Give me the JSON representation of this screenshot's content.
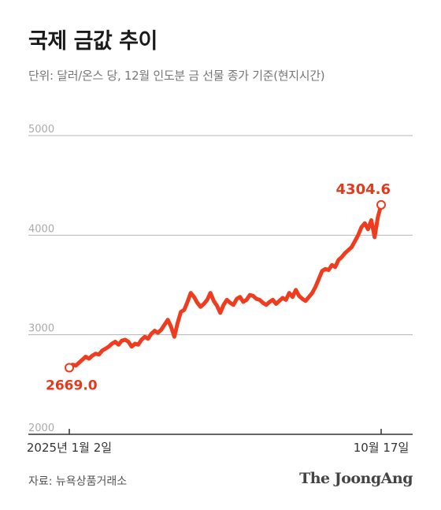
{
  "title": "국제 금값 추이",
  "subtitle": "단위: 달러/온스 당, 12월 인도분 금 선물 종가 기준(현지시간)",
  "source": "자료: 뉴욕상품거래소",
  "brand": "The JoongAng",
  "colors": {
    "line": "#f03c1e",
    "grid": "#b5b5b5",
    "axis": "#333333",
    "tick_label": "#aaaaaa",
    "label": "#e8381c"
  },
  "chart_data": {
    "type": "line",
    "title": "국제 금값 추이",
    "xlabel": "",
    "ylabel": "",
    "ylim": [
      2000,
      5000
    ],
    "yticks": [
      2000,
      3000,
      4000,
      5000
    ],
    "x_tick_labels": [
      "2025년 1월 2일",
      "10월 17일"
    ],
    "x_range": [
      "2025-01-02",
      "2025-10-17"
    ],
    "grid": true,
    "series": [
      {
        "values": [
          2669.0,
          2700,
          2690,
          2720,
          2750,
          2780,
          2760,
          2790,
          2810,
          2800,
          2840,
          2860,
          2880,
          2910,
          2930,
          2900,
          2940,
          2950,
          2930,
          2880,
          2910,
          2900,
          2950,
          2980,
          2960,
          3010,
          3040,
          3020,
          3050,
          3100,
          3150,
          3080,
          2980,
          3120,
          3230,
          3250,
          3330,
          3420,
          3380,
          3320,
          3280,
          3310,
          3350,
          3420,
          3340,
          3290,
          3220,
          3300,
          3350,
          3320,
          3300,
          3360,
          3380,
          3330,
          3350,
          3400,
          3390,
          3360,
          3350,
          3320,
          3300,
          3330,
          3350,
          3310,
          3340,
          3370,
          3350,
          3420,
          3380,
          3450,
          3390,
          3360,
          3340,
          3380,
          3420,
          3480,
          3560,
          3640,
          3660,
          3650,
          3700,
          3680,
          3750,
          3780,
          3820,
          3850,
          3880,
          3940,
          4000,
          4080,
          4120,
          4060,
          4150,
          3980,
          4180,
          4304.6
        ]
      }
    ],
    "annotations": [
      {
        "label": "2669.0",
        "x": "2025-01-02",
        "y": 2669.0
      },
      {
        "label": "4304.6",
        "x": "2025-10-17",
        "y": 4304.6
      }
    ]
  }
}
